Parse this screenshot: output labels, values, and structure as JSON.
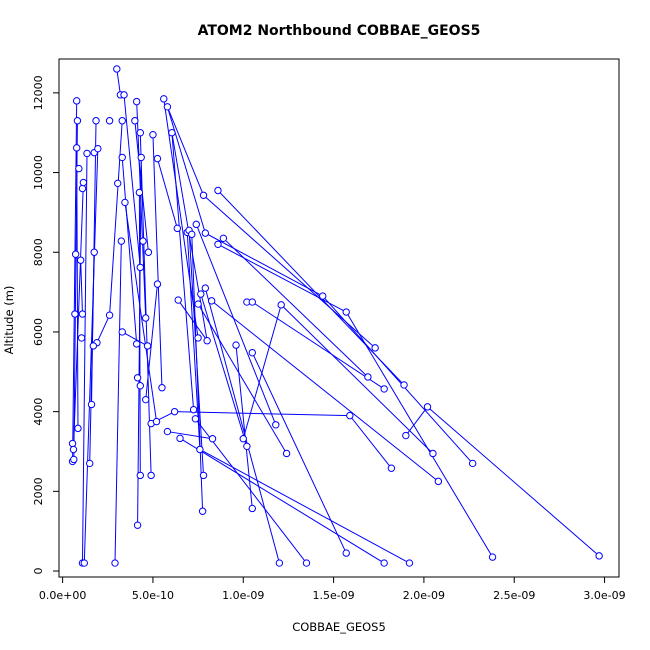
{
  "chart_data": {
    "type": "scatter",
    "title": "ATOM2 Northbound COBBAE_GEOS5",
    "xlabel": "COBBAE_GEOS5",
    "ylabel": "Altitude (m)",
    "xlim": [
      -2e-11,
      3.08e-09
    ],
    "ylim": [
      -150,
      12850
    ],
    "x_ticks": [
      0,
      5e-10,
      1e-09,
      1.5e-09,
      2e-09,
      2.5e-09,
      3e-09
    ],
    "x_tick_labels": [
      "0.0e+00",
      "5.0e-10",
      "1.0e-09",
      "1.5e-09",
      "2.0e-09",
      "2.5e-09",
      "3.0e-09"
    ],
    "y_ticks": [
      0,
      2000,
      4000,
      6000,
      8000,
      10000,
      12000
    ],
    "y_tick_labels": [
      "0",
      "2000",
      "4000",
      "6000",
      "8000",
      "10000",
      "12000"
    ],
    "grid": false,
    "style": "points connected by lines",
    "color": "#0000ff",
    "series": [
      {
        "points": [
          [
            5.5e-11,
            2750
          ],
          [
            5.5e-11,
            3200
          ],
          [
            6.2e-11,
            2800
          ],
          [
            6e-11,
            3050
          ],
          [
            6.8e-11,
            6450
          ],
          [
            7.2e-11,
            7950
          ],
          [
            8.2e-11,
            11300
          ],
          [
            7.8e-11,
            10620
          ],
          [
            7.8e-11,
            11800
          ],
          [
            9e-11,
            10100
          ],
          [
            1e-10,
            7800
          ],
          [
            1.1e-10,
            9600
          ],
          [
            1.15e-10,
            9750
          ],
          [
            1.1e-10,
            6450
          ],
          [
            1.05e-10,
            5850
          ],
          [
            8.5e-11,
            3580
          ],
          [
            1.1e-10,
            200
          ],
          [
            1.35e-10,
            10480
          ],
          [
            1.75e-10,
            10500
          ],
          [
            1.85e-10,
            11300
          ],
          [
            1.95e-10,
            10600
          ],
          [
            1.9e-10,
            5730
          ],
          [
            1.75e-10,
            8000
          ],
          [
            1.7e-10,
            5650
          ],
          [
            1.6e-10,
            4180
          ],
          [
            1.5e-10,
            2700
          ],
          [
            1.2e-10,
            200
          ],
          [
            2.6e-10,
            11300
          ],
          [
            3e-10,
            12600
          ],
          [
            3.2e-10,
            11950
          ],
          [
            3.4e-10,
            11950
          ],
          [
            3.3e-10,
            11300
          ],
          [
            3.3e-10,
            10380
          ],
          [
            3.05e-10,
            9730
          ],
          [
            3.45e-10,
            9250
          ],
          [
            3.25e-10,
            8280
          ],
          [
            3.3e-10,
            6000
          ],
          [
            2.6e-10,
            6420
          ],
          [
            2.9e-10,
            200
          ],
          [
            4e-10,
            11300
          ],
          [
            4.1e-10,
            11780
          ],
          [
            4.3e-10,
            11000
          ],
          [
            4.35e-10,
            10380
          ],
          [
            4.25e-10,
            9500
          ],
          [
            4.45e-10,
            8280
          ],
          [
            4.3e-10,
            7620
          ],
          [
            4.75e-10,
            8000
          ],
          [
            4.6e-10,
            6350
          ],
          [
            4.7e-10,
            5650
          ],
          [
            4.1e-10,
            5700
          ],
          [
            4.15e-10,
            4850
          ],
          [
            4.3e-10,
            4650
          ],
          [
            4.6e-10,
            4300
          ],
          [
            4.3e-10,
            2400
          ],
          [
            4.15e-10,
            1150
          ],
          [
            4.9e-10,
            3700
          ],
          [
            5.2e-10,
            3750
          ],
          [
            4.9e-10,
            2400
          ],
          [
            5e-10,
            10950
          ],
          [
            5.25e-10,
            10350
          ],
          [
            5.25e-10,
            7200
          ],
          [
            5.5e-10,
            4600
          ],
          [
            5.8e-10,
            3500
          ],
          [
            5.6e-10,
            11850
          ],
          [
            5.8e-10,
            11650
          ],
          [
            6.05e-10,
            11000
          ],
          [
            6.2e-10,
            4000
          ],
          [
            6.35e-10,
            8600
          ],
          [
            6.4e-10,
            6800
          ],
          [
            6.5e-10,
            3330
          ],
          [
            6.9e-10,
            8500
          ],
          [
            7e-10,
            8550
          ],
          [
            7.15e-10,
            8450
          ],
          [
            7.4e-10,
            8700
          ],
          [
            7.25e-10,
            4050
          ],
          [
            7.35e-10,
            3820
          ],
          [
            7.5e-10,
            6700
          ],
          [
            7.5e-10,
            5850
          ],
          [
            7.65e-10,
            6950
          ],
          [
            7.9e-10,
            7100
          ],
          [
            8e-10,
            5780
          ],
          [
            7.6e-10,
            3050
          ],
          [
            7.8e-10,
            2400
          ],
          [
            7.75e-10,
            1500
          ],
          [
            7.8e-10,
            9430
          ],
          [
            7.9e-10,
            8480
          ],
          [
            8.25e-10,
            6780
          ],
          [
            8.3e-10,
            3320
          ],
          [
            8.6e-10,
            9550
          ],
          [
            8.6e-10,
            8200
          ],
          [
            8.9e-10,
            8350
          ],
          [
            9.6e-10,
            5670
          ],
          [
            1e-09,
            3320
          ],
          [
            1.02e-09,
            3130
          ],
          [
            1.02e-09,
            6750
          ],
          [
            1.05e-09,
            6750
          ],
          [
            1.05e-09,
            5480
          ],
          [
            1.05e-09,
            1570
          ],
          [
            1.18e-09,
            3670
          ],
          [
            1.21e-09,
            6680
          ],
          [
            1.2e-09,
            200
          ],
          [
            1.24e-09,
            2950
          ],
          [
            1.35e-09,
            200
          ],
          [
            1.44e-09,
            6900
          ],
          [
            1.57e-09,
            6500
          ],
          [
            1.57e-09,
            450
          ],
          [
            1.59e-09,
            3900
          ],
          [
            1.69e-09,
            4870
          ],
          [
            1.73e-09,
            5600
          ],
          [
            1.78e-09,
            4570
          ],
          [
            1.78e-09,
            200
          ],
          [
            1.82e-09,
            2580
          ],
          [
            1.89e-09,
            4670
          ],
          [
            1.9e-09,
            3400
          ],
          [
            1.92e-09,
            200
          ],
          [
            2.02e-09,
            4120
          ],
          [
            2.05e-09,
            2950
          ],
          [
            2.08e-09,
            2250
          ],
          [
            2.27e-09,
            2700
          ],
          [
            2.38e-09,
            350
          ],
          [
            2.97e-09,
            380
          ]
        ],
        "segments": [
          [
            [
              5.5e-11,
              2750
            ],
            [
              7.8e-11,
              11800
            ]
          ],
          [
            [
              6.2e-11,
              2800
            ],
            [
              8.2e-11,
              11300
            ]
          ],
          [
            [
              6e-11,
              3050
            ],
            [
              1.15e-10,
              9750
            ]
          ],
          [
            [
              1.1e-10,
              200
            ],
            [
              1.35e-10,
              10480
            ]
          ],
          [
            [
              1.2e-10,
              200
            ],
            [
              1.95e-10,
              10600
            ]
          ],
          [
            [
              1.5e-10,
              2700
            ],
            [
              1.75e-10,
              8000
            ]
          ],
          [
            [
              8.5e-11,
              3580
            ],
            [
              7.8e-11,
              10620
            ]
          ],
          [
            [
              3e-10,
              12600
            ],
            [
              3.2e-10,
              11950
            ]
          ],
          [
            [
              2.9e-10,
              200
            ],
            [
              3.25e-10,
              8280
            ]
          ],
          [
            [
              2.6e-10,
              6420
            ],
            [
              3.3e-10,
              11300
            ]
          ],
          [
            [
              3.3e-10,
              10380
            ],
            [
              4.1e-10,
              5700
            ]
          ],
          [
            [
              3.45e-10,
              9250
            ],
            [
              5.2e-10,
              3750
            ]
          ],
          [
            [
              3.4e-10,
              11950
            ],
            [
              4.3e-10,
              7620
            ]
          ],
          [
            [
              4.1e-10,
              11780
            ],
            [
              4.6e-10,
              6350
            ]
          ],
          [
            [
              4e-10,
              11300
            ],
            [
              4.75e-10,
              8000
            ]
          ],
          [
            [
              4.35e-10,
              10380
            ],
            [
              4.15e-10,
              1150
            ]
          ],
          [
            [
              4.3e-10,
              11000
            ],
            [
              4.9e-10,
              2400
            ]
          ],
          [
            [
              4.25e-10,
              9500
            ],
            [
              4.3e-10,
              2400
            ]
          ],
          [
            [
              5e-10,
              10950
            ],
            [
              5.5e-10,
              4600
            ]
          ],
          [
            [
              5.25e-10,
              10350
            ],
            [
              6.35e-10,
              8600
            ]
          ],
          [
            [
              5.6e-10,
              11850
            ],
            [
              7.5e-10,
              5850
            ]
          ],
          [
            [
              5.8e-10,
              11650
            ],
            [
              7.8e-10,
              9430
            ]
          ],
          [
            [
              6.05e-10,
              11000
            ],
            [
              8e-10,
              5780
            ]
          ],
          [
            [
              5.8e-10,
              11650
            ],
            [
              7.9e-10,
              8480
            ]
          ],
          [
            [
              6.05e-10,
              11000
            ],
            [
              7.25e-10,
              4050
            ]
          ],
          [
            [
              6.9e-10,
              8500
            ],
            [
              7.6e-10,
              3050
            ]
          ],
          [
            [
              7.15e-10,
              8450
            ],
            [
              7.75e-10,
              1500
            ]
          ],
          [
            [
              7e-10,
              8550
            ],
            [
              7.8e-10,
              2400
            ]
          ],
          [
            [
              7.4e-10,
              8700
            ],
            [
              1.18e-09,
              3670
            ]
          ],
          [
            [
              7.9e-10,
              8480
            ],
            [
              1.44e-09,
              6900
            ]
          ],
          [
            [
              7.65e-10,
              6950
            ],
            [
              1.02e-09,
              3130
            ]
          ],
          [
            [
              7.9e-10,
              7100
            ],
            [
              1.2e-09,
              200
            ]
          ],
          [
            [
              7.5e-10,
              6700
            ],
            [
              1.24e-09,
              2950
            ]
          ],
          [
            [
              7.35e-10,
              3820
            ],
            [
              1.35e-09,
              200
            ]
          ],
          [
            [
              8.6e-10,
              9550
            ],
            [
              1.89e-09,
              4670
            ]
          ],
          [
            [
              7.8e-10,
              9430
            ],
            [
              1.73e-09,
              5600
            ]
          ],
          [
            [
              8.9e-10,
              8350
            ],
            [
              1.69e-09,
              4870
            ]
          ],
          [
            [
              8.6e-10,
              8200
            ],
            [
              1.57e-09,
              6500
            ]
          ],
          [
            [
              8.25e-10,
              6780
            ],
            [
              2.08e-09,
              2250
            ]
          ],
          [
            [
              1.05e-09,
              6750
            ],
            [
              1.78e-09,
              4570
            ]
          ],
          [
            [
              1.21e-09,
              6680
            ],
            [
              2.05e-09,
              2950
            ]
          ],
          [
            [
              1.44e-09,
              6900
            ],
            [
              2.27e-09,
              2700
            ]
          ],
          [
            [
              1.57e-09,
              6500
            ],
            [
              2.38e-09,
              350
            ]
          ],
          [
            [
              1.05e-09,
              5480
            ],
            [
              1.57e-09,
              450
            ]
          ],
          [
            [
              9.6e-10,
              5670
            ],
            [
              1.05e-09,
              1570
            ]
          ],
          [
            [
              6.5e-10,
              3330
            ],
            [
              1.78e-09,
              200
            ]
          ],
          [
            [
              7.6e-10,
              3050
            ],
            [
              1.92e-09,
              200
            ]
          ],
          [
            [
              6.2e-10,
              4000
            ],
            [
              1.59e-09,
              3900
            ]
          ],
          [
            [
              1.59e-09,
              3900
            ],
            [
              1.82e-09,
              2580
            ]
          ],
          [
            [
              2.02e-09,
              4120
            ],
            [
              2.97e-09,
              380
            ]
          ],
          [
            [
              1.9e-09,
              3400
            ],
            [
              2.02e-09,
              4120
            ]
          ],
          [
            [
              5.8e-10,
              3500
            ],
            [
              8.3e-10,
              3320
            ]
          ],
          [
            [
              6.4e-10,
              6800
            ],
            [
              8e-10,
              5780
            ]
          ],
          [
            [
              3.3e-10,
              6000
            ],
            [
              4.7e-10,
              5650
            ]
          ],
          [
            [
              4.6e-10,
              4300
            ],
            [
              5.25e-10,
              7200
            ]
          ],
          [
            [
              4.9e-10,
              3700
            ],
            [
              6.2e-10,
              4000
            ]
          ],
          [
            [
              1e-09,
              3320
            ],
            [
              1.21e-09,
              6680
            ]
          ],
          [
            [
              1.9e-10,
              5730
            ],
            [
              2.6e-10,
              6420
            ]
          ],
          [
            [
              1.6e-10,
              4180
            ],
            [
              1.85e-10,
              11300
            ]
          ],
          [
            [
              1.1e-10,
              6450
            ],
            [
              1e-10,
              7800
            ]
          ]
        ]
      }
    ]
  }
}
